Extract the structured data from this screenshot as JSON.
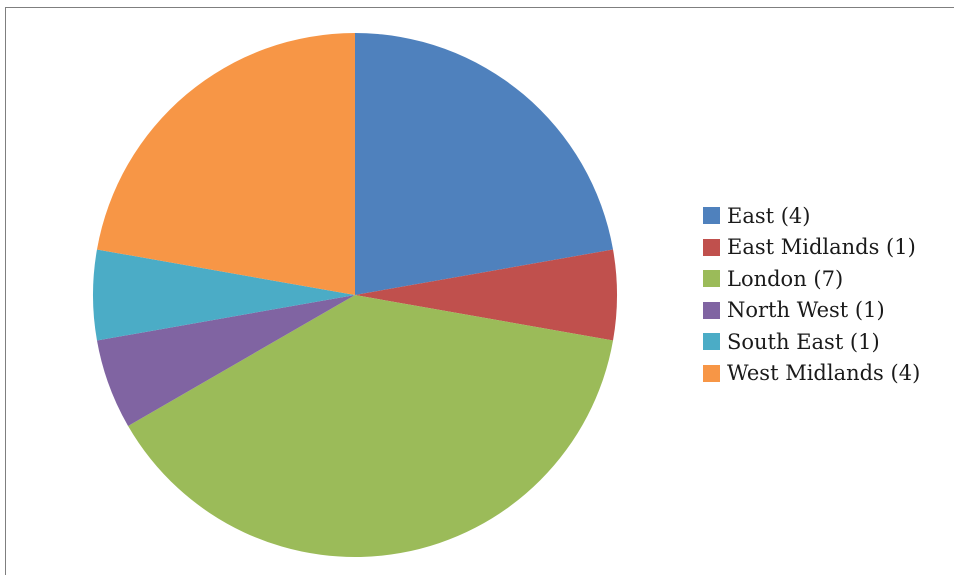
{
  "chart_data": {
    "type": "pie",
    "title": "",
    "categories": [
      "East",
      "East Midlands",
      "London",
      "North West",
      "South East",
      "West Midlands"
    ],
    "values": [
      4,
      1,
      7,
      1,
      1,
      4
    ],
    "colors": [
      "#4f81bd",
      "#c0504d",
      "#9bbb59",
      "#8064a2",
      "#4bacc6",
      "#f79646"
    ],
    "legend": {
      "position": "right",
      "labels": [
        "East (4)",
        "East Midlands (1)",
        "London (7)",
        "North West (1)",
        "South East (1)",
        "West Midlands (4)"
      ]
    },
    "start_angle": "12 o'clock",
    "direction": "clockwise"
  }
}
